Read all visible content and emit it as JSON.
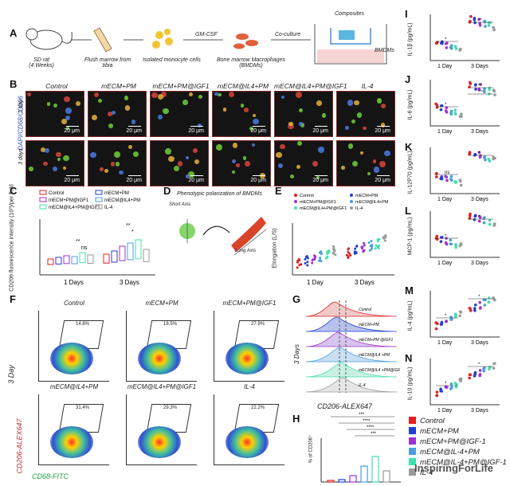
{
  "panels": {
    "A": "A",
    "B": "B",
    "C": "C",
    "D": "D",
    "E": "E",
    "F": "F",
    "G": "G",
    "H": "H",
    "I": "I",
    "J": "J",
    "K": "K",
    "L": "L",
    "M": "M",
    "N": "N"
  },
  "schematic": {
    "rat": "SD rat\n(4 Weeks)",
    "step1": "Flush marrow from tibia",
    "step2": "Isolated monocyte cells",
    "gmcsf": "GM-CSF",
    "step3": "Bone marrow Macrophages (BMDMs)",
    "coculture": "Co-culture",
    "composites": "Composites",
    "bmdms": "BMDMs"
  },
  "groups": [
    "Control",
    "mECM+PM",
    "mECM+PM@IGF1",
    "mECM@IL4+PM",
    "mECM@IL4+PM@IGF1",
    "IL-4"
  ],
  "micro": {
    "ylabel": "DAPI/CD68/CD206",
    "row1": "1 day",
    "row2": "3 days",
    "scale": "20 μm"
  },
  "panelC": {
    "ylabel": "CD206 fluorescence intensity (10³)/per field",
    "x": [
      "1 Days",
      "3 Days"
    ],
    "sig": [
      "**",
      "ns",
      "**",
      "*"
    ]
  },
  "panelD": {
    "title": "Phenotypic polarization of BMDMs",
    "short": "Short Axis",
    "long": "Long Axis"
  },
  "panelE": {
    "ylabel": "Elongation (L/S)",
    "x": [
      "1 Day",
      "3 Days"
    ]
  },
  "panelF": {
    "ylabel": "CD206-ALEX647",
    "xlabel": "CD68-FITC",
    "side": "3 Day",
    "pct": [
      "14.8%",
      "18.5%",
      "27.9%",
      "31.4%",
      "29.3%",
      "22.2%"
    ]
  },
  "panelG": {
    "xlabel": "CD206-ALEX647",
    "side": "3 Days",
    "labels": [
      "Control",
      "mECM+PM",
      "mECM+PM @IGF1",
      "mECM@IL4 +PM",
      "mECM@IL4 +PM@IGF1",
      "IL-4"
    ]
  },
  "panelH": {
    "ylabel": "% of CD206⁺",
    "sig": [
      "***",
      "****",
      "****",
      "***",
      "****",
      "****",
      "**",
      "**"
    ]
  },
  "cytokines": [
    {
      "id": "I",
      "ylabel": "IL-1β (pg/mL)",
      "x": [
        "1 Day",
        "3 Days"
      ],
      "sig": [
        "*",
        "**"
      ]
    },
    {
      "id": "J",
      "ylabel": "IL-6 (pg/mL)",
      "x": [
        "1 Day",
        "3 Days"
      ],
      "sig": [
        "*",
        "**",
        "**"
      ]
    },
    {
      "id": "K",
      "ylabel": "IL-12P70 (pg/mL)",
      "x": [
        "1 Day",
        "3 Days"
      ],
      "sig": [
        "ns",
        "*"
      ]
    },
    {
      "id": "L",
      "ylabel": "MCP-1 (pg/mL)",
      "x": [
        "1 Day",
        "3 Days"
      ],
      "sig": [
        "*",
        "*"
      ]
    },
    {
      "id": "M",
      "ylabel": "IL-4 (pg/mL)",
      "x": [
        "1 Day",
        "3 Days"
      ],
      "sig": [
        "*",
        "*"
      ]
    },
    {
      "id": "N",
      "ylabel": "IL-10 (pg/mL)",
      "x": [
        "1 Day",
        "3 Days"
      ],
      "sig": [
        "*",
        "*"
      ]
    }
  ],
  "legend": [
    {
      "label": "Control",
      "color": "#e02020"
    },
    {
      "label": "mECM+PM",
      "color": "#1f3fd0"
    },
    {
      "label": "mECM+PM@IGF-1",
      "color": "#a030d0"
    },
    {
      "label": "mECM@IL-4+PM",
      "color": "#4a9ee0"
    },
    {
      "label": "mECM@IL-4+PM@IGF-1",
      "color": "#40e0b0"
    },
    {
      "label": "IL-4",
      "color": "#9a9a9a"
    }
  ],
  "watermark": "InspiringForLife",
  "colors": {
    "control": "#e02020",
    "mecm": "#1f3fd0",
    "igf": "#a030d0",
    "il4pm": "#4a9ee0",
    "il4pmigf": "#40e0b0",
    "il4": "#9a9a9a"
  }
}
